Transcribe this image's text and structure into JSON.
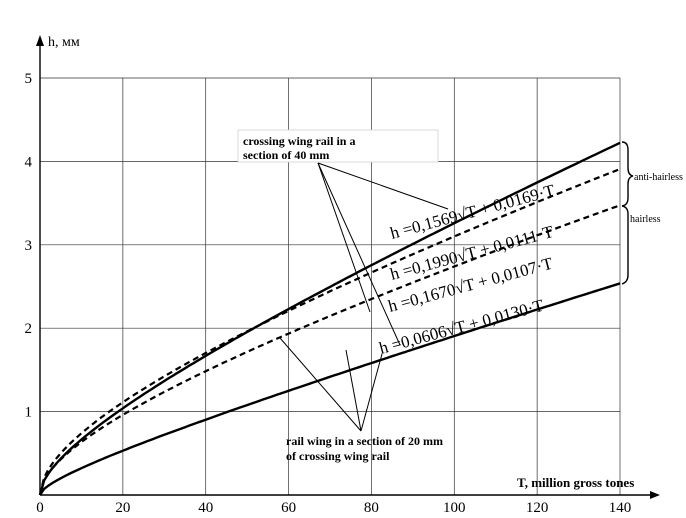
{
  "chart_data": {
    "type": "line",
    "title": "",
    "xlabel": "T, million gross tones",
    "ylabel": "h, мм",
    "xlim": [
      0,
      140
    ],
    "ylim": [
      0,
      5
    ],
    "xticks": [
      0,
      20,
      40,
      60,
      80,
      100,
      120,
      140
    ],
    "yticks": [
      0,
      1,
      2,
      3,
      4,
      5
    ],
    "grid": true,
    "series": [
      {
        "equation": "h =0,1569√T + 0,0169·T",
        "a": 0.1569,
        "b": 0.0169,
        "style": "solid",
        "t_start": 0
      },
      {
        "equation": "h =0,1990√T + 0,0111·T",
        "a": 0.199,
        "b": 0.0111,
        "style": "dashed",
        "t_start": 0
      },
      {
        "equation": "h =0,1670√T + 0,0107·T",
        "a": 0.167,
        "b": 0.0107,
        "style": "dashed",
        "t_start": 0
      },
      {
        "equation": "h =0,0606√T + 0,0130·T",
        "a": 0.0606,
        "b": 0.013,
        "style": "solid",
        "t_start": 0
      }
    ],
    "annotations": {
      "top": [
        "crossing wing rail  in a",
        "section of 40 mm"
      ],
      "bottom": [
        "rail wing in a section of 20 mm",
        "of crossing wing rail"
      ]
    },
    "brackets": [
      "anti-hairless",
      "hairless"
    ]
  }
}
